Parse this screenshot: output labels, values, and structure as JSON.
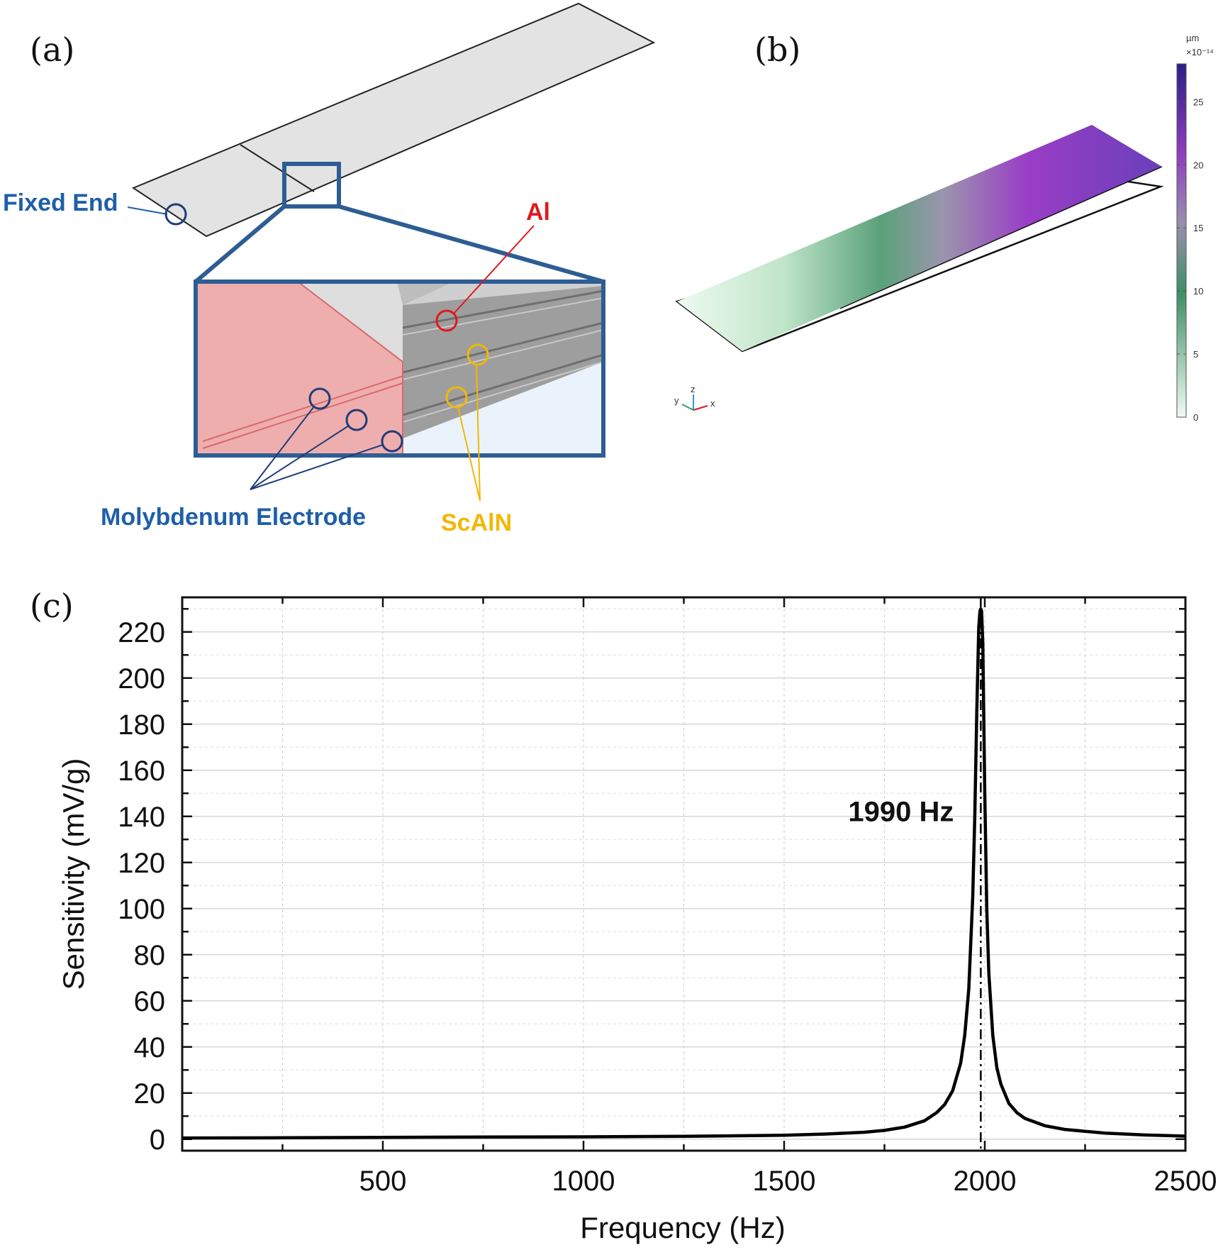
{
  "panels": {
    "a": {
      "label": "(a)",
      "callouts": {
        "fixed_end": "Fixed End",
        "al": "Al",
        "molybdenum": "Molybdenum Electrode",
        "scain": "ScAlN"
      },
      "colors": {
        "blue": "#1f5fa8",
        "red": "#e0191f",
        "yellow": "#f2b705",
        "inset_frame": "#2d5d93"
      }
    },
    "b": {
      "label": "(b)",
      "colorbar": {
        "unit": "µm",
        "multiplier": "×10⁻¹⁴",
        "ticks": [
          "0",
          "5",
          "10",
          "15",
          "20",
          "25"
        ],
        "tick_values": [
          0,
          5,
          10,
          15,
          20,
          25
        ],
        "max": 28,
        "colors": [
          "#f0fbf2",
          "#3e8f67",
          "#9a8fb0",
          "#8d3dbf",
          "#2b1f86"
        ]
      },
      "axes_triad": {
        "y": "y",
        "z": "z",
        "x": "x"
      }
    },
    "c": {
      "label": "(c)"
    }
  },
  "chart_data": {
    "type": "line",
    "title": "",
    "xlabel": "Frequency (Hz)",
    "ylabel": "Sensitivity (mV/g)",
    "xlim": [
      0,
      2500
    ],
    "ylim": [
      -5,
      235
    ],
    "xticks": [
      500,
      1000,
      1500,
      2000,
      2500
    ],
    "yticks": [
      0,
      20,
      40,
      60,
      80,
      100,
      120,
      140,
      160,
      180,
      200,
      220
    ],
    "grid": true,
    "series": [
      {
        "color": "#000000",
        "x": [
          0,
          250,
          500,
          750,
          1000,
          1250,
          1500,
          1600,
          1700,
          1750,
          1800,
          1850,
          1880,
          1900,
          1920,
          1940,
          1950,
          1960,
          1970,
          1975,
          1980,
          1985,
          1988,
          1990,
          1992,
          1995,
          2000,
          2005,
          2010,
          2020,
          2030,
          2040,
          2060,
          2080,
          2100,
          2150,
          2200,
          2300,
          2400,
          2500
        ],
        "y": [
          0.5,
          0.6,
          0.8,
          0.9,
          1.0,
          1.2,
          1.7,
          2.2,
          3.0,
          3.8,
          5.2,
          8.0,
          11.5,
          15.0,
          21.0,
          33.0,
          45.0,
          65.0,
          105.0,
          140.0,
          185.0,
          222.0,
          229.0,
          230.0,
          229.0,
          215.0,
          150.0,
          100.0,
          72.0,
          45.0,
          31.0,
          24.0,
          15.5,
          11.5,
          9.0,
          5.8,
          4.2,
          2.6,
          1.8,
          1.3
        ]
      }
    ],
    "annotations": [
      {
        "text": "1990 Hz",
        "x": 1990
      }
    ],
    "vertical_lines": [
      {
        "x": 1990,
        "style": "dash-dot",
        "color": "#000000"
      }
    ]
  }
}
